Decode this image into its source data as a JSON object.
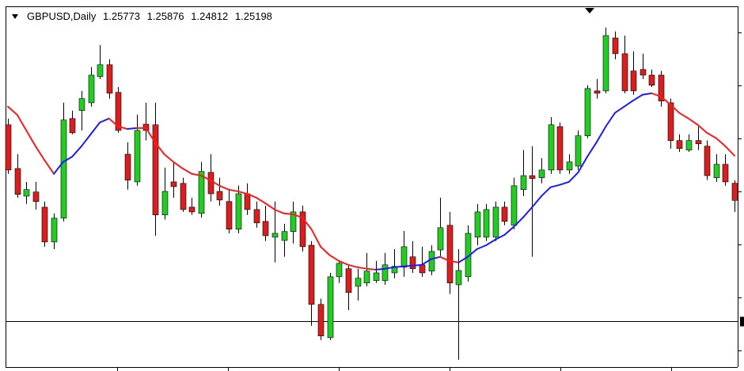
{
  "chart_data": {
    "type": "candlestick",
    "title": "GBPUSD,Daily",
    "open": [
      1.2774,
      1.2627,
      1.2534,
      1.2548,
      1.2497,
      1.238,
      1.246,
      1.2795,
      1.2822,
      1.2848,
      1.2936,
      1.2976,
      1.2883,
      1.2675,
      1.2582,
      1.2776,
      1.2774,
      1.2471,
      1.2582,
      1.2577,
      1.2497,
      1.2476,
      1.2614,
      1.255,
      1.2516,
      1.2423,
      1.2542,
      1.2489,
      1.2449,
      1.2396,
      1.2385,
      1.2415,
      1.2481,
      1.2369,
      1.217,
      1.2058,
      1.2263,
      1.229,
      1.2231,
      1.2242,
      1.225,
      1.225,
      1.2276,
      1.2295,
      1.233,
      1.2303,
      1.2282,
      1.2353,
      1.2436,
      1.2236,
      1.2263,
      1.2396,
      1.2396,
      1.2396,
      1.2497,
      1.2436,
      1.2556,
      1.2603,
      1.2596,
      1.2622,
      1.2768,
      1.2622,
      1.2635,
      1.2737,
      1.2888,
      1.2888,
      1.3066,
      1.3013,
      1.2955,
      1.296,
      1.2941,
      1.2941,
      1.2848,
      1.2721,
      1.2689,
      1.2721,
      1.2702,
      1.2596,
      1.2641,
      1.25773
    ],
    "high": [
      1.2795,
      1.2675,
      1.2582,
      1.2582,
      1.2516,
      1.2476,
      1.2848,
      1.2822,
      1.2888,
      1.2968,
      1.3042,
      1.2994,
      1.2901,
      1.2715,
      1.2808,
      1.2848,
      1.2848,
      1.263,
      1.2649,
      1.2596,
      1.2529,
      1.2649,
      1.2675,
      1.2596,
      1.2556,
      1.2569,
      1.2577,
      1.2516,
      1.2502,
      1.2516,
      1.2441,
      1.2516,
      1.2502,
      1.2383,
      1.2189,
      1.2276,
      1.2316,
      1.2303,
      1.229,
      1.2343,
      1.2316,
      1.2343,
      1.2356,
      1.2417,
      1.2383,
      1.2364,
      1.2369,
      1.2529,
      1.2481,
      1.2356,
      1.2436,
      1.2508,
      1.2508,
      1.2516,
      1.2516,
      1.2596,
      1.2689,
      1.2702,
      1.2662,
      1.28,
      1.2782,
      1.2675,
      1.2755,
      1.2907,
      1.2928,
      1.3101,
      1.3088,
      1.3074,
      1.3021,
      1.3013,
      1.296,
      1.2955,
      1.2862,
      1.2742,
      1.2742,
      1.2768,
      1.2721,
      1.2675,
      1.2675,
      1.25876
    ],
    "low": [
      1.2609,
      1.2529,
      1.2508,
      1.2489,
      1.2364,
      1.2356,
      1.2449,
      1.2742,
      1.2755,
      1.2835,
      1.2928,
      1.2862,
      1.2747,
      1.2556,
      1.2569,
      1.2721,
      1.2401,
      1.2455,
      1.2529,
      1.2481,
      1.2471,
      1.2462,
      1.2516,
      1.2502,
      1.2409,
      1.2409,
      1.2471,
      1.2428,
      1.2383,
      1.2311,
      1.233,
      1.2375,
      1.2348,
      1.2098,
      1.205,
      1.205,
      1.2242,
      1.2151,
      1.2183,
      1.2231,
      1.2242,
      1.2236,
      1.2258,
      1.2263,
      1.2276,
      1.2263,
      1.2268,
      1.233,
      1.2205,
      1.1984,
      1.2247,
      1.2369,
      1.2383,
      1.2383,
      1.2436,
      1.2423,
      1.2534,
      1.233,
      1.2577,
      1.2609,
      1.2609,
      1.2609,
      1.2622,
      1.2729,
      1.2862,
      1.288,
      1.2994,
      1.288,
      1.2875,
      1.2928,
      1.2901,
      1.2835,
      1.2694,
      1.2683,
      1.2683,
      1.2689,
      1.2588,
      1.2582,
      1.2569,
      1.24812
    ],
    "close": [
      1.2622,
      1.254,
      1.2556,
      1.2516,
      1.238,
      1.246,
      1.279,
      1.2747,
      1.2862,
      1.2941,
      1.2976,
      1.288,
      1.2755,
      1.2588,
      1.2755,
      1.2755,
      1.2471,
      1.255,
      1.2566,
      1.2489,
      1.2481,
      1.2617,
      1.2542,
      1.2521,
      1.2423,
      1.2542,
      1.2489,
      1.2444,
      1.2401,
      1.2409,
      1.2415,
      1.2481,
      1.2364,
      1.217,
      1.2064,
      1.2263,
      1.2308,
      1.221,
      1.2258,
      1.2282,
      1.2276,
      1.2303,
      1.2298,
      1.2364,
      1.229,
      1.2276,
      1.2348,
      1.2428,
      1.2242,
      1.2284,
      1.2409,
      1.2481,
      1.2489,
      1.2497,
      1.2449,
      1.2569,
      1.2603,
      1.2593,
      1.2622,
      1.2774,
      1.2622,
      1.2649,
      1.2737,
      1.2896,
      1.288,
      1.3074,
      1.3013,
      1.2888,
      1.2888,
      1.2941,
      1.2907,
      1.2854,
      1.2721,
      1.2694,
      1.2721,
      1.271,
      1.2603,
      1.2641,
      1.2582,
      1.25198
    ],
    "up_color": "#22cc22",
    "down_color": "#d81e1e",
    "ma": {
      "values": [
        1.2835,
        1.2808,
        1.2755,
        1.2702,
        1.2654,
        1.2609,
        1.2649,
        1.2667,
        1.2702,
        1.2742,
        1.2782,
        1.2795,
        1.2768,
        1.276,
        1.2763,
        1.2763,
        1.2715,
        1.2675,
        1.2649,
        1.2627,
        1.2609,
        1.2603,
        1.2588,
        1.2569,
        1.2556,
        1.255,
        1.2542,
        1.2529,
        1.251,
        1.2489,
        1.2476,
        1.2473,
        1.2462,
        1.2423,
        1.2364,
        1.2335,
        1.2316,
        1.2303,
        1.2295,
        1.229,
        1.2287,
        1.229,
        1.2295,
        1.2298,
        1.23,
        1.2303,
        1.2322,
        1.233,
        1.2316,
        1.2311,
        1.233,
        1.2356,
        1.2369,
        1.2388,
        1.2404,
        1.2431,
        1.2462,
        1.2497,
        1.2534,
        1.2564,
        1.2572,
        1.2582,
        1.2614,
        1.2667,
        1.2715,
        1.2768,
        1.2814,
        1.2835,
        1.2856,
        1.2875,
        1.288,
        1.2869,
        1.2843,
        1.2814,
        1.2795,
        1.2774,
        1.2747,
        1.2729,
        1.2702,
        1.267
      ],
      "up_color": "#1a1aff",
      "down_color": "#ff1a1a"
    },
    "hline": 1.2114,
    "ylim": [
      1.1962,
      1.3167
    ]
  }
}
